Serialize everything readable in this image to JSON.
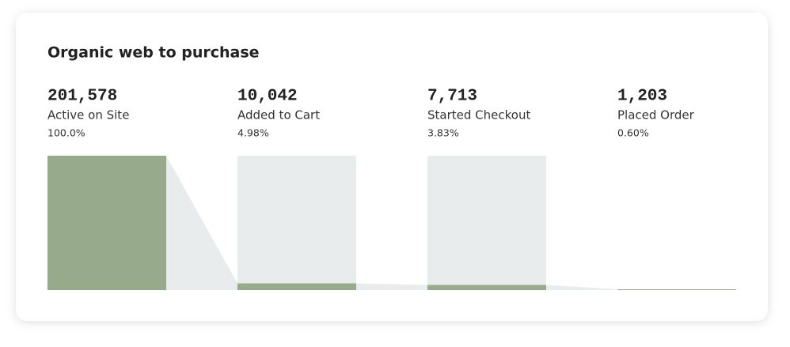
{
  "chart_data": {
    "type": "funnel",
    "title": "Organic web to purchase",
    "categories": [
      "Active on Site",
      "Added to Cart",
      "Started Checkout",
      "Placed Order"
    ],
    "values": [
      201578,
      10042,
      7713,
      1203
    ],
    "value_labels": [
      "201,578",
      "10,042",
      "7,713",
      "1,203"
    ],
    "percents": [
      100.0,
      4.98,
      3.83,
      0.6
    ],
    "percent_labels": [
      "100.0%",
      "4.98%",
      "3.83%",
      "0.60%"
    ],
    "ylim": [
      0,
      100
    ],
    "color": "#97aa8c",
    "track_color": "#e8ecec"
  }
}
